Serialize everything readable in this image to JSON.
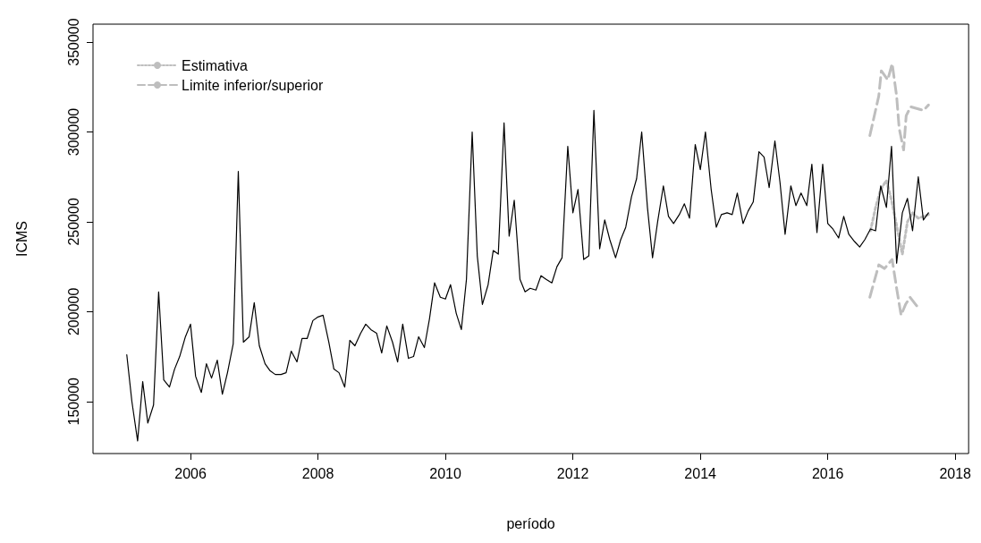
{
  "chart_data": {
    "type": "line",
    "xlabel": "período",
    "ylabel": "ICMS",
    "xlim": [
      2004.47,
      2018.21
    ],
    "ylim": [
      121000,
      360000
    ],
    "xticks": [
      2006,
      2008,
      2010,
      2012,
      2014,
      2016,
      2018
    ],
    "yticks": [
      150000,
      200000,
      250000,
      300000,
      350000
    ],
    "grid": false,
    "legend": "top left",
    "series": [
      {
        "color": "#000000",
        "line_style": "solid",
        "x": [
          2005.0,
          2005.08,
          2005.17,
          2005.25,
          2005.33,
          2005.42,
          2005.5,
          2005.58,
          2005.67,
          2005.75,
          2005.83,
          2005.92,
          2006.0,
          2006.08,
          2006.17,
          2006.25,
          2006.33,
          2006.42,
          2006.5,
          2006.58,
          2006.67,
          2006.75,
          2006.83,
          2006.92,
          2007.0,
          2007.08,
          2007.17,
          2007.25,
          2007.33,
          2007.42,
          2007.5,
          2007.58,
          2007.67,
          2007.75,
          2007.83,
          2007.92,
          2008.0,
          2008.08,
          2008.17,
          2008.25,
          2008.33,
          2008.42,
          2008.5,
          2008.58,
          2008.67,
          2008.75,
          2008.83,
          2008.92,
          2009.0,
          2009.08,
          2009.17,
          2009.25,
          2009.33,
          2009.42,
          2009.5,
          2009.58,
          2009.67,
          2009.75,
          2009.83,
          2009.92,
          2010.0,
          2010.08,
          2010.17,
          2010.25,
          2010.33,
          2010.42,
          2010.5,
          2010.58,
          2010.67,
          2010.75,
          2010.83,
          2010.92,
          2011.0,
          2011.08,
          2011.17,
          2011.25,
          2011.33,
          2011.42,
          2011.5,
          2011.58,
          2011.67,
          2011.75,
          2011.83,
          2011.92,
          2012.0,
          2012.08,
          2012.17,
          2012.25,
          2012.33,
          2012.42,
          2012.5,
          2012.58,
          2012.67,
          2012.75,
          2012.83,
          2012.92,
          2013.0,
          2013.08,
          2013.17,
          2013.25,
          2013.33,
          2013.42,
          2013.5,
          2013.58,
          2013.67,
          2013.75,
          2013.83,
          2013.92,
          2014.0,
          2014.08,
          2014.17,
          2014.25,
          2014.33,
          2014.42,
          2014.5,
          2014.58,
          2014.67,
          2014.75,
          2014.83,
          2014.92,
          2015.0,
          2015.08,
          2015.17,
          2015.25,
          2015.33,
          2015.42,
          2015.5,
          2015.58,
          2015.67,
          2015.75,
          2015.83,
          2015.92,
          2016.0,
          2016.08,
          2016.17,
          2016.25,
          2016.33,
          2016.42,
          2016.5,
          2016.58,
          2016.67,
          2016.75,
          2016.83,
          2016.92,
          2017.0,
          2017.08,
          2017.17,
          2017.25,
          2017.33,
          2017.42,
          2017.5,
          2017.58
        ],
        "values": [
          176000,
          150000,
          128000,
          161000,
          138000,
          148000,
          211000,
          162000,
          158000,
          168000,
          175000,
          186000,
          193000,
          164000,
          155000,
          171000,
          163000,
          173000,
          154000,
          166000,
          182000,
          278000,
          183000,
          186000,
          205000,
          181000,
          171000,
          167000,
          165000,
          165000,
          166000,
          178000,
          172000,
          185000,
          185000,
          195000,
          197000,
          198000,
          183000,
          168000,
          166000,
          158000,
          184000,
          181000,
          188000,
          193000,
          190000,
          188000,
          177000,
          192000,
          183000,
          172000,
          193000,
          174000,
          175000,
          186000,
          180000,
          196000,
          216000,
          208000,
          207000,
          215000,
          199000,
          190000,
          218000,
          300000,
          231000,
          204000,
          215000,
          234000,
          232000,
          305000,
          242000,
          262000,
          218000,
          211000,
          213000,
          212000,
          220000,
          218000,
          216000,
          225000,
          230000,
          292000,
          255000,
          268000,
          229000,
          231000,
          312000,
          235000,
          251000,
          240000,
          230000,
          240000,
          247000,
          264000,
          274000,
          300000,
          258000,
          230000,
          250000,
          270000,
          253000,
          249000,
          254000,
          260000,
          252000,
          293000,
          279000,
          300000,
          268000,
          247000,
          254000,
          255000,
          254000,
          266000,
          249000,
          256000,
          261000,
          289000,
          286000,
          269000,
          295000,
          272000,
          243000,
          270000,
          259000,
          266000,
          259000,
          282000,
          244000,
          282000,
          249000,
          246000,
          241000,
          253000,
          243000,
          239000,
          236000,
          240000,
          246000,
          245000,
          270000,
          258000,
          292000,
          227000,
          255000,
          263000,
          245000,
          275000,
          251000,
          255000
        ]
      },
      {
        "name": "Estimativa",
        "color": "#bebebe",
        "line_style": "dotted",
        "x": [
          2016.67,
          2016.75,
          2016.83,
          2016.92,
          2017.0,
          2017.08,
          2017.17,
          2017.25,
          2017.33,
          2017.42,
          2017.5,
          2017.58
        ],
        "values": [
          245000,
          258000,
          268000,
          273000,
          262000,
          248000,
          232000,
          250000,
          255000,
          252000,
          253000,
          254000
        ]
      },
      {
        "name": "Limite inferior/superior",
        "color": "#bebebe",
        "line_style": "dashed",
        "x": [
          2016.66,
          2016.8,
          2016.84,
          2016.94,
          2017.01,
          2017.08,
          2017.12,
          2017.19,
          2017.23,
          2017.3,
          2017.5,
          2017.58
        ],
        "values": [
          298000,
          320000,
          334000,
          329000,
          338000,
          320000,
          302000,
          290000,
          309000,
          314000,
          312000,
          315000
        ]
      },
      {
        "color": "#bebebe",
        "line_style": "dashed",
        "x": [
          2016.66,
          2016.8,
          2016.89,
          2017.01,
          2017.08,
          2017.15,
          2017.22,
          2017.29,
          2017.4
        ],
        "values": [
          208000,
          226000,
          224000,
          229000,
          213000,
          198000,
          204000,
          208000,
          203000
        ]
      }
    ]
  }
}
